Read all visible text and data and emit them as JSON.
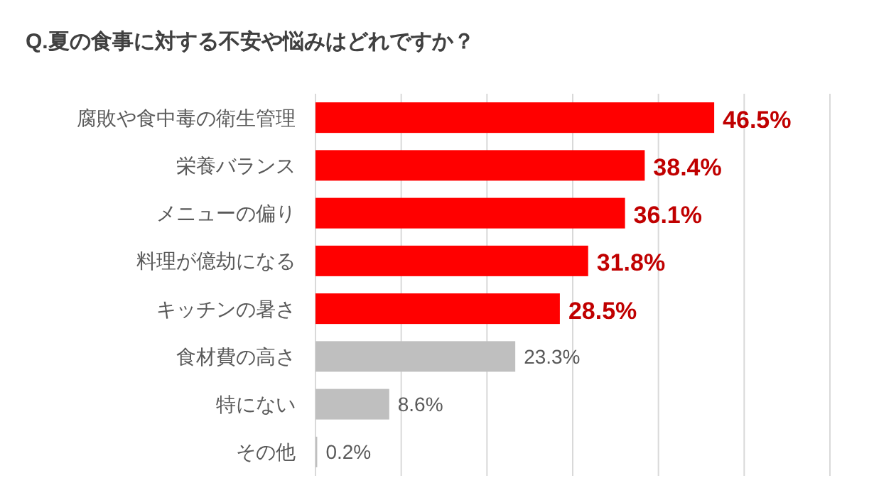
{
  "chart_data": {
    "type": "bar",
    "orientation": "horizontal",
    "title": "Q.夏の食事に対する不安や悩みはどれですか？",
    "categories": [
      "腐敗や食中毒の衛生管理",
      "栄養バランス",
      "メニューの偏り",
      "料理が億劫になる",
      "キッチンの暑さ",
      "食材費の高さ",
      "特にない",
      "その他"
    ],
    "values": [
      46.5,
      38.4,
      36.1,
      31.8,
      28.5,
      23.3,
      8.6,
      0.2
    ],
    "colors": [
      "#ff0000",
      "#ff0000",
      "#ff0000",
      "#ff0000",
      "#ff0000",
      "#bfbfbf",
      "#bfbfbf",
      "#bfbfbf"
    ],
    "value_labels": [
      "46.5%",
      "38.4%",
      "36.1%",
      "31.8%",
      "28.5%",
      "23.3%",
      "8.6%",
      "0.2%"
    ],
    "xlim": [
      0,
      60
    ],
    "xticks": [
      {
        "value": 0,
        "label": null
      },
      {
        "value": 10,
        "label": null
      },
      {
        "value": 20,
        "label": null
      },
      {
        "value": 30,
        "label": null
      },
      {
        "value": 40,
        "label": null
      },
      {
        "value": 50,
        "label": null
      },
      {
        "value": 60,
        "label": null
      }
    ],
    "grid": "x",
    "tick_labels": "y"
  }
}
